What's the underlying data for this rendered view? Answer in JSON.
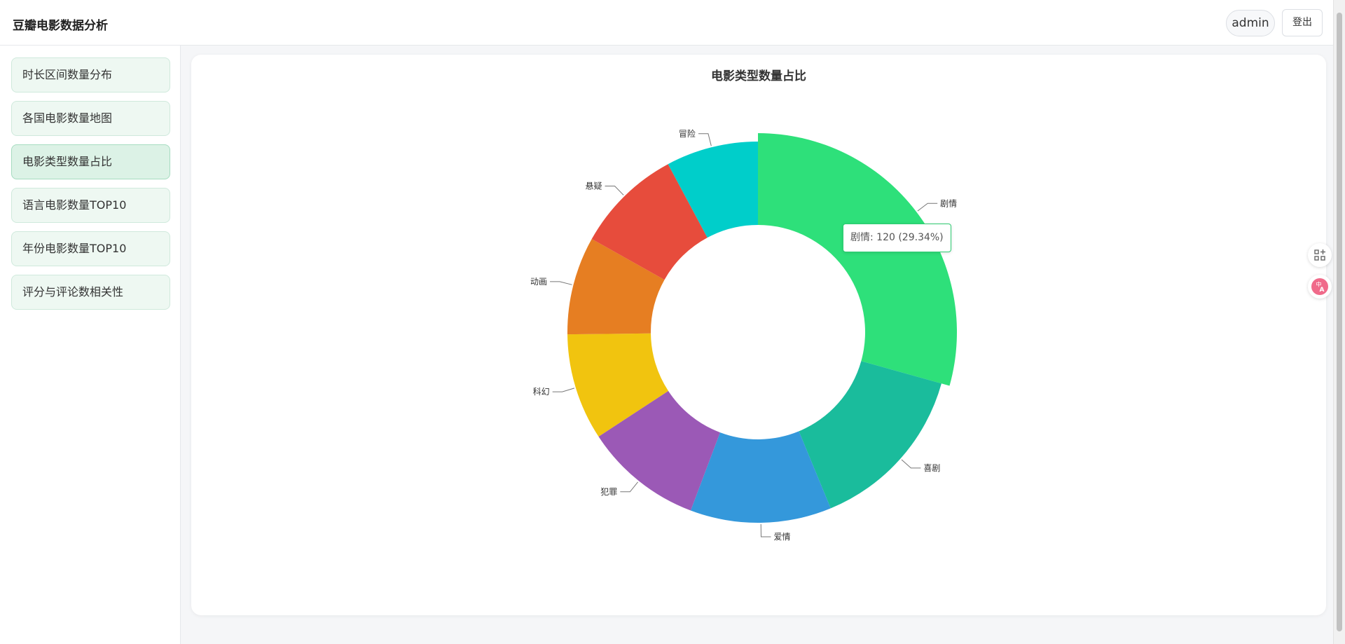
{
  "header": {
    "title": "豆瓣电影数据分析",
    "user": "admin",
    "logout_label": "登出"
  },
  "sidebar": {
    "items": [
      {
        "label": "时长区间数量分布"
      },
      {
        "label": "各国电影数量地图"
      },
      {
        "label": "电影类型数量占比"
      },
      {
        "label": "语言电影数量TOP10"
      },
      {
        "label": "年份电影数量TOP10"
      },
      {
        "label": "评分与评论数相关性"
      }
    ],
    "active_index": 2
  },
  "tooltip": {
    "text": "剧情: 120 (29.34%)"
  },
  "float_buttons": [
    {
      "icon": "qr-grid-icon"
    },
    {
      "icon": "translate-icon"
    }
  ],
  "chart_data": {
    "type": "pie",
    "subtype": "donut",
    "title": "电影类型数量占比",
    "total": 409,
    "slices": [
      {
        "name": "剧情",
        "value": 120,
        "percent": 29.34,
        "color": "#2ee07a",
        "highlighted": true
      },
      {
        "name": "喜剧",
        "value": 59,
        "color": "#1abc9c"
      },
      {
        "name": "爱情",
        "value": 49,
        "color": "#3498db"
      },
      {
        "name": "犯罪",
        "value": 41,
        "color": "#9b59b6"
      },
      {
        "name": "科幻",
        "value": 37,
        "color": "#f1c40f"
      },
      {
        "name": "动画",
        "value": 34,
        "color": "#e67e22"
      },
      {
        "name": "悬疑",
        "value": 37,
        "color": "#e74c3c"
      },
      {
        "name": "冒险",
        "value": 32,
        "color": "#00ceca"
      }
    ]
  }
}
